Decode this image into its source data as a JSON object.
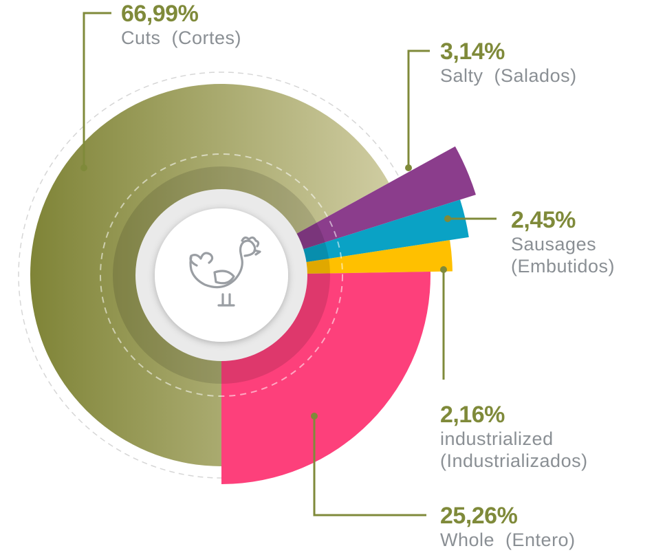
{
  "chart_data": {
    "type": "pie",
    "series": [
      {
        "name": "Cuts (Cortes)",
        "value": 66.99,
        "value_label": "66,99%",
        "label": "Cuts (Cortes)",
        "label_lines": [
          "Cuts  (Cortes)"
        ],
        "color": "#8a8a3e"
      },
      {
        "name": "Salty (Salados)",
        "value": 3.14,
        "value_label": "3,14%",
        "label": "Salty (Salados)",
        "label_lines": [
          "Salty  (Salados)"
        ],
        "color": "#8b3d8c"
      },
      {
        "name": "Sausages (Embutidos)",
        "value": 2.45,
        "value_label": "2,45%",
        "label": "Sausages (Embutidos)",
        "label_lines": [
          "Sausages",
          "(Embutidos)"
        ],
        "color": "#0aa2c5"
      },
      {
        "name": "industrialized (Industrializados)",
        "value": 2.16,
        "value_label": "2,16%",
        "label": "industrialized (Industrializados)",
        "label_lines": [
          "industrialized",
          "(Industrializados)"
        ],
        "color": "#ffc000"
      },
      {
        "name": "Whole (Entero)",
        "value": 25.26,
        "value_label": "25,26%",
        "label": "Whole (Entero)",
        "label_lines": [
          "Whole  (Entero)"
        ],
        "color": "#fd407b"
      }
    ],
    "center_icon": "rooster-icon",
    "colors": {
      "accent": "#7f8a3a",
      "label_text": "#8a8f94",
      "icon": "#9a9ea3"
    }
  }
}
